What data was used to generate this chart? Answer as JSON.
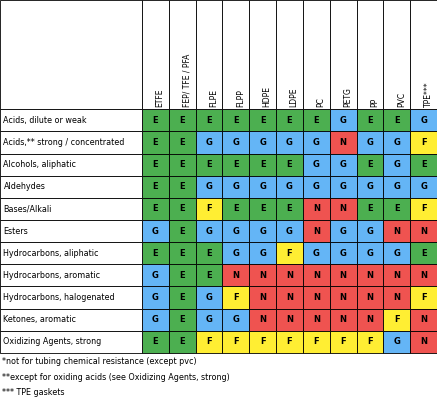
{
  "columns": [
    "ETFE",
    "FEP/ TFE / PFA",
    "FLPE",
    "FLPP",
    "HDPE",
    "LDPE",
    "PC",
    "PETG",
    "PP",
    "PVC",
    "TPE***"
  ],
  "rows": [
    "Acids, dilute or weak",
    "Acids,** strong / concentrated",
    "Alcohols, aliphatic",
    "Aldehydes",
    "Bases/Alkali",
    "Esters",
    "Hydrocarbons, aliphatic",
    "Hydrocarbons, aromatic",
    "Hydrocarbons, halogenated",
    "Ketones, aromatic",
    "Oxidizing Agents, strong"
  ],
  "data": [
    [
      "E",
      "E",
      "E",
      "E",
      "E",
      "E",
      "E",
      "G",
      "E",
      "E",
      "G"
    ],
    [
      "E",
      "E",
      "G",
      "G",
      "G",
      "G",
      "G",
      "N",
      "G",
      "G",
      "F"
    ],
    [
      "E",
      "E",
      "E",
      "E",
      "E",
      "E",
      "G",
      "G",
      "E",
      "G",
      "E"
    ],
    [
      "E",
      "E",
      "G",
      "G",
      "G",
      "G",
      "G",
      "G",
      "G",
      "G",
      "G"
    ],
    [
      "E",
      "E",
      "F",
      "E",
      "E",
      "E",
      "N",
      "N",
      "E",
      "E",
      "F"
    ],
    [
      "G",
      "E",
      "G",
      "G",
      "G",
      "G",
      "N",
      "G",
      "G",
      "N",
      "N"
    ],
    [
      "E",
      "E",
      "E",
      "G",
      "G",
      "F",
      "G",
      "G",
      "G",
      "G",
      "E"
    ],
    [
      "G",
      "E",
      "E",
      "N",
      "N",
      "N",
      "N",
      "N",
      "N",
      "N",
      "N"
    ],
    [
      "G",
      "E",
      "G",
      "F",
      "N",
      "N",
      "N",
      "N",
      "N",
      "N",
      "F"
    ],
    [
      "G",
      "E",
      "G",
      "G",
      "N",
      "N",
      "N",
      "N",
      "N",
      "F",
      "N"
    ],
    [
      "E",
      "E",
      "F",
      "F",
      "F",
      "F",
      "F",
      "F",
      "F",
      "G",
      "N"
    ]
  ],
  "color_map": {
    "E": "#4CAF50",
    "G": "#64B5F6",
    "F": "#FFEE33",
    "N": "#EF5350"
  },
  "footnotes": [
    "*not for tubing chemical resistance (except pvc)",
    "**except for oxiding acids (see Oxidizing Agents, strong)",
    "*** TPE gaskets"
  ],
  "bg_color": "#ffffff",
  "fig_width": 4.37,
  "fig_height": 4.08,
  "dpi": 100
}
